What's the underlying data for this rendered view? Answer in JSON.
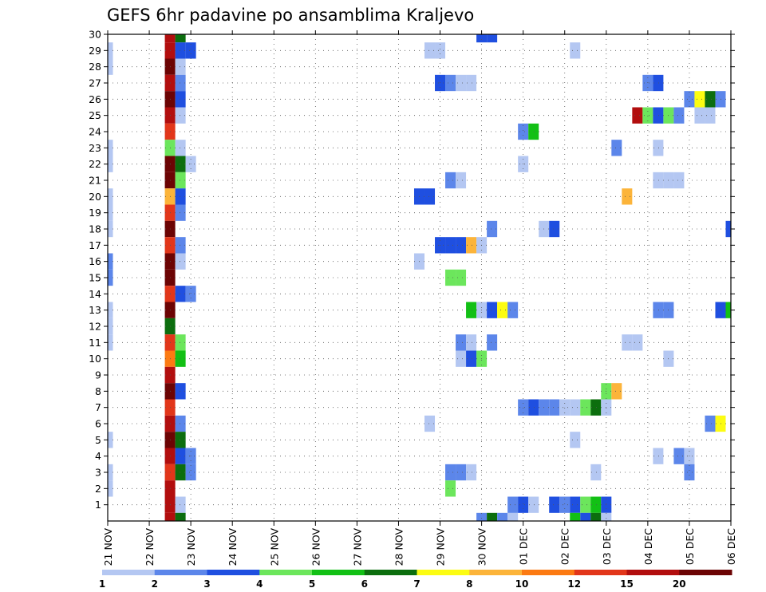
{
  "chart_data": {
    "type": "heatmap",
    "title": "GEFS 6hr padavine po ansamblima Kraljevo",
    "xlabel": "",
    "ylabel": "",
    "x_tick_labels": [
      "21 NOV",
      "22 NOV",
      "23 NOV",
      "24 NOV",
      "25 NOV",
      "26 NOV",
      "27 NOV",
      "28 NOV",
      "29 NOV",
      "30 NOV",
      "01 DEC",
      "02 DEC",
      "03 DEC",
      "04 DEC",
      "05 DEC",
      "06 DEC"
    ],
    "y_tick_labels": [
      "1",
      "2",
      "3",
      "4",
      "5",
      "6",
      "7",
      "8",
      "9",
      "10",
      "11",
      "12",
      "13",
      "14",
      "15",
      "16",
      "17",
      "18",
      "19",
      "20",
      "21",
      "22",
      "23",
      "24",
      "25",
      "26",
      "27",
      "28",
      "29",
      "30"
    ],
    "x_range_steps": [
      0,
      60
    ],
    "y_range_members": [
      0,
      30
    ],
    "grid": true,
    "colorbar": {
      "position": "bottom",
      "labels": [
        "1",
        "2",
        "3",
        "4",
        "5",
        "6",
        "7",
        "8",
        "10",
        "12",
        "15",
        "20"
      ],
      "colors": [
        "#b4c7f2",
        "#5c86ea",
        "#1f4fe0",
        "#6ce65c",
        "#12c015",
        "#0c6e0e",
        "#fcfc12",
        "#fcb43a",
        "#fc7a12",
        "#e2361a",
        "#b20e0e",
        "#6c0404"
      ]
    },
    "color_classes": {
      "1": "#b4c7f2",
      "2": "#5c86ea",
      "3": "#1f4fe0",
      "4": "#6ce65c",
      "5": "#12c015",
      "6": "#0c6e0e",
      "7": "#fcfc12",
      "8": "#fcb43a",
      "10": "#fc7a12",
      "12": "#e2361a",
      "15": "#b20e0e",
      "20": "#6c0404"
    },
    "cells_note_units": "x = 6-hour step index from 21 NOV 00z (4 steps per day), y = ensemble member, v = precipitation class (mm)",
    "cells": [
      {
        "x": 0,
        "y": 29,
        "v": "1"
      },
      {
        "x": 0,
        "y": 28,
        "v": "1"
      },
      {
        "x": 0,
        "y": 23,
        "v": "1"
      },
      {
        "x": 0,
        "y": 22,
        "v": "1"
      },
      {
        "x": 0,
        "y": 20,
        "v": "1"
      },
      {
        "x": 0,
        "y": 19,
        "v": "1"
      },
      {
        "x": 0,
        "y": 18,
        "v": "1"
      },
      {
        "x": 0,
        "y": 16,
        "v": "2"
      },
      {
        "x": 0,
        "y": 15,
        "v": "2"
      },
      {
        "x": 0,
        "y": 13,
        "v": "1"
      },
      {
        "x": 0,
        "y": 12,
        "v": "1"
      },
      {
        "x": 0,
        "y": 11,
        "v": "1"
      },
      {
        "x": 0,
        "y": 5,
        "v": "1"
      },
      {
        "x": 0,
        "y": 3,
        "v": "1"
      },
      {
        "x": 0,
        "y": 2,
        "v": "1"
      },
      {
        "x": 6,
        "y": 30,
        "v": "15"
      },
      {
        "x": 6,
        "y": 29,
        "v": "15"
      },
      {
        "x": 6,
        "y": 28,
        "v": "20"
      },
      {
        "x": 6,
        "y": 27,
        "v": "15"
      },
      {
        "x": 6,
        "y": 26,
        "v": "20"
      },
      {
        "x": 6,
        "y": 25,
        "v": "15"
      },
      {
        "x": 6,
        "y": 24,
        "v": "12"
      },
      {
        "x": 6,
        "y": 23,
        "v": "4"
      },
      {
        "x": 6,
        "y": 22,
        "v": "20"
      },
      {
        "x": 6,
        "y": 21,
        "v": "20"
      },
      {
        "x": 6,
        "y": 20,
        "v": "8"
      },
      {
        "x": 6,
        "y": 19,
        "v": "12"
      },
      {
        "x": 6,
        "y": 18,
        "v": "20"
      },
      {
        "x": 6,
        "y": 17,
        "v": "12"
      },
      {
        "x": 6,
        "y": 16,
        "v": "20"
      },
      {
        "x": 6,
        "y": 15,
        "v": "20"
      },
      {
        "x": 6,
        "y": 14,
        "v": "12"
      },
      {
        "x": 6,
        "y": 13,
        "v": "20"
      },
      {
        "x": 6,
        "y": 12,
        "v": "6"
      },
      {
        "x": 6,
        "y": 11,
        "v": "12"
      },
      {
        "x": 6,
        "y": 10,
        "v": "10"
      },
      {
        "x": 6,
        "y": 9,
        "v": "15"
      },
      {
        "x": 6,
        "y": 8,
        "v": "20"
      },
      {
        "x": 6,
        "y": 7,
        "v": "12"
      },
      {
        "x": 6,
        "y": 6,
        "v": "15"
      },
      {
        "x": 6,
        "y": 5,
        "v": "20"
      },
      {
        "x": 6,
        "y": 4,
        "v": "15"
      },
      {
        "x": 6,
        "y": 3,
        "v": "12"
      },
      {
        "x": 6,
        "y": 2,
        "v": "15"
      },
      {
        "x": 6,
        "y": 1,
        "v": "15"
      },
      {
        "x": 6,
        "y": 0,
        "v": "15"
      },
      {
        "x": 7,
        "y": 30,
        "v": "6"
      },
      {
        "x": 7,
        "y": 29,
        "v": "3"
      },
      {
        "x": 7,
        "y": 28,
        "v": "1"
      },
      {
        "x": 7,
        "y": 27,
        "v": "2"
      },
      {
        "x": 7,
        "y": 26,
        "v": "3"
      },
      {
        "x": 7,
        "y": 25,
        "v": "1"
      },
      {
        "x": 7,
        "y": 23,
        "v": "1"
      },
      {
        "x": 7,
        "y": 22,
        "v": "6"
      },
      {
        "x": 7,
        "y": 21,
        "v": "4"
      },
      {
        "x": 7,
        "y": 20,
        "v": "3"
      },
      {
        "x": 7,
        "y": 19,
        "v": "2"
      },
      {
        "x": 7,
        "y": 17,
        "v": "2"
      },
      {
        "x": 7,
        "y": 16,
        "v": "1"
      },
      {
        "x": 7,
        "y": 14,
        "v": "3"
      },
      {
        "x": 7,
        "y": 11,
        "v": "4"
      },
      {
        "x": 7,
        "y": 10,
        "v": "5"
      },
      {
        "x": 7,
        "y": 8,
        "v": "3"
      },
      {
        "x": 7,
        "y": 6,
        "v": "2"
      },
      {
        "x": 7,
        "y": 5,
        "v": "6"
      },
      {
        "x": 7,
        "y": 4,
        "v": "3"
      },
      {
        "x": 7,
        "y": 3,
        "v": "6"
      },
      {
        "x": 7,
        "y": 1,
        "v": "1"
      },
      {
        "x": 7,
        "y": 0,
        "v": "6"
      },
      {
        "x": 8,
        "y": 29,
        "v": "3"
      },
      {
        "x": 8,
        "y": 22,
        "v": "1"
      },
      {
        "x": 8,
        "y": 14,
        "v": "2"
      },
      {
        "x": 8,
        "y": 4,
        "v": "2"
      },
      {
        "x": 8,
        "y": 3,
        "v": "2"
      },
      {
        "x": 30,
        "y": 20,
        "v": "3"
      },
      {
        "x": 31,
        "y": 20,
        "v": "3"
      },
      {
        "x": 30,
        "y": 16,
        "v": "1"
      },
      {
        "x": 31,
        "y": 29,
        "v": "1"
      },
      {
        "x": 32,
        "y": 29,
        "v": "1"
      },
      {
        "x": 31,
        "y": 6,
        "v": "1"
      },
      {
        "x": 32,
        "y": 27,
        "v": "3"
      },
      {
        "x": 33,
        "y": 27,
        "v": "2"
      },
      {
        "x": 34,
        "y": 27,
        "v": "1"
      },
      {
        "x": 35,
        "y": 27,
        "v": "1"
      },
      {
        "x": 32,
        "y": 17,
        "v": "3"
      },
      {
        "x": 33,
        "y": 17,
        "v": "3"
      },
      {
        "x": 34,
        "y": 17,
        "v": "3"
      },
      {
        "x": 35,
        "y": 17,
        "v": "8"
      },
      {
        "x": 36,
        "y": 17,
        "v": "1"
      },
      {
        "x": 33,
        "y": 21,
        "v": "2"
      },
      {
        "x": 34,
        "y": 21,
        "v": "1"
      },
      {
        "x": 33,
        "y": 15,
        "v": "4"
      },
      {
        "x": 34,
        "y": 15,
        "v": "4"
      },
      {
        "x": 33,
        "y": 3,
        "v": "2"
      },
      {
        "x": 34,
        "y": 3,
        "v": "2"
      },
      {
        "x": 35,
        "y": 3,
        "v": "1"
      },
      {
        "x": 33,
        "y": 2,
        "v": "4"
      },
      {
        "x": 34,
        "y": 11,
        "v": "2"
      },
      {
        "x": 35,
        "y": 11,
        "v": "1"
      },
      {
        "x": 34,
        "y": 10,
        "v": "1"
      },
      {
        "x": 35,
        "y": 10,
        "v": "3"
      },
      {
        "x": 36,
        "y": 10,
        "v": "4"
      },
      {
        "x": 35,
        "y": 13,
        "v": "5"
      },
      {
        "x": 36,
        "y": 13,
        "v": "1"
      },
      {
        "x": 37,
        "y": 13,
        "v": "3"
      },
      {
        "x": 38,
        "y": 13,
        "v": "7"
      },
      {
        "x": 39,
        "y": 13,
        "v": "2"
      },
      {
        "x": 36,
        "y": 30,
        "v": "3"
      },
      {
        "x": 37,
        "y": 30,
        "v": "3"
      },
      {
        "x": 37,
        "y": 18,
        "v": "2"
      },
      {
        "x": 37,
        "y": 11,
        "v": "2"
      },
      {
        "x": 36,
        "y": 0,
        "v": "2"
      },
      {
        "x": 37,
        "y": 0,
        "v": "6"
      },
      {
        "x": 38,
        "y": 0,
        "v": "2"
      },
      {
        "x": 39,
        "y": 0,
        "v": "1"
      },
      {
        "x": 39,
        "y": 1,
        "v": "2"
      },
      {
        "x": 40,
        "y": 1,
        "v": "3"
      },
      {
        "x": 41,
        "y": 1,
        "v": "1"
      },
      {
        "x": 40,
        "y": 24,
        "v": "2"
      },
      {
        "x": 41,
        "y": 24,
        "v": "5"
      },
      {
        "x": 40,
        "y": 22,
        "v": "1"
      },
      {
        "x": 40,
        "y": 7,
        "v": "2"
      },
      {
        "x": 41,
        "y": 7,
        "v": "3"
      },
      {
        "x": 42,
        "y": 7,
        "v": "2"
      },
      {
        "x": 43,
        "y": 7,
        "v": "2"
      },
      {
        "x": 44,
        "y": 7,
        "v": "1"
      },
      {
        "x": 45,
        "y": 7,
        "v": "1"
      },
      {
        "x": 46,
        "y": 7,
        "v": "4"
      },
      {
        "x": 47,
        "y": 7,
        "v": "6"
      },
      {
        "x": 48,
        "y": 7,
        "v": "1"
      },
      {
        "x": 42,
        "y": 18,
        "v": "1"
      },
      {
        "x": 43,
        "y": 18,
        "v": "3"
      },
      {
        "x": 43,
        "y": 1,
        "v": "3"
      },
      {
        "x": 44,
        "y": 1,
        "v": "2"
      },
      {
        "x": 45,
        "y": 1,
        "v": "3"
      },
      {
        "x": 46,
        "y": 1,
        "v": "4"
      },
      {
        "x": 47,
        "y": 1,
        "v": "5"
      },
      {
        "x": 48,
        "y": 1,
        "v": "3"
      },
      {
        "x": 45,
        "y": 0,
        "v": "5"
      },
      {
        "x": 46,
        "y": 0,
        "v": "3"
      },
      {
        "x": 47,
        "y": 0,
        "v": "6"
      },
      {
        "x": 48,
        "y": 0,
        "v": "1"
      },
      {
        "x": 45,
        "y": 29,
        "v": "1"
      },
      {
        "x": 45,
        "y": 5,
        "v": "1"
      },
      {
        "x": 47,
        "y": 3,
        "v": "1"
      },
      {
        "x": 48,
        "y": 8,
        "v": "4"
      },
      {
        "x": 49,
        "y": 8,
        "v": "8"
      },
      {
        "x": 49,
        "y": 23,
        "v": "2"
      },
      {
        "x": 50,
        "y": 20,
        "v": "8"
      },
      {
        "x": 50,
        "y": 11,
        "v": "1"
      },
      {
        "x": 51,
        "y": 11,
        "v": "1"
      },
      {
        "x": 51,
        "y": 25,
        "v": "15"
      },
      {
        "x": 52,
        "y": 25,
        "v": "4"
      },
      {
        "x": 53,
        "y": 25,
        "v": "3"
      },
      {
        "x": 54,
        "y": 25,
        "v": "4"
      },
      {
        "x": 55,
        "y": 25,
        "v": "2"
      },
      {
        "x": 52,
        "y": 27,
        "v": "2"
      },
      {
        "x": 53,
        "y": 27,
        "v": "3"
      },
      {
        "x": 53,
        "y": 23,
        "v": "1"
      },
      {
        "x": 53,
        "y": 21,
        "v": "1"
      },
      {
        "x": 54,
        "y": 21,
        "v": "1"
      },
      {
        "x": 55,
        "y": 21,
        "v": "1"
      },
      {
        "x": 53,
        "y": 13,
        "v": "2"
      },
      {
        "x": 54,
        "y": 13,
        "v": "2"
      },
      {
        "x": 53,
        "y": 4,
        "v": "1"
      },
      {
        "x": 55,
        "y": 4,
        "v": "2"
      },
      {
        "x": 56,
        "y": 4,
        "v": "1"
      },
      {
        "x": 54,
        "y": 10,
        "v": "1"
      },
      {
        "x": 56,
        "y": 3,
        "v": "2"
      },
      {
        "x": 56,
        "y": 26,
        "v": "2"
      },
      {
        "x": 57,
        "y": 26,
        "v": "7"
      },
      {
        "x": 58,
        "y": 26,
        "v": "6"
      },
      {
        "x": 59,
        "y": 26,
        "v": "2"
      },
      {
        "x": 57,
        "y": 25,
        "v": "1"
      },
      {
        "x": 58,
        "y": 25,
        "v": "1"
      },
      {
        "x": 58,
        "y": 6,
        "v": "2"
      },
      {
        "x": 59,
        "y": 6,
        "v": "7"
      },
      {
        "x": 59,
        "y": 13,
        "v": "3"
      },
      {
        "x": 60,
        "y": 13,
        "v": "5"
      },
      {
        "x": 60,
        "y": 18,
        "v": "3"
      }
    ]
  }
}
